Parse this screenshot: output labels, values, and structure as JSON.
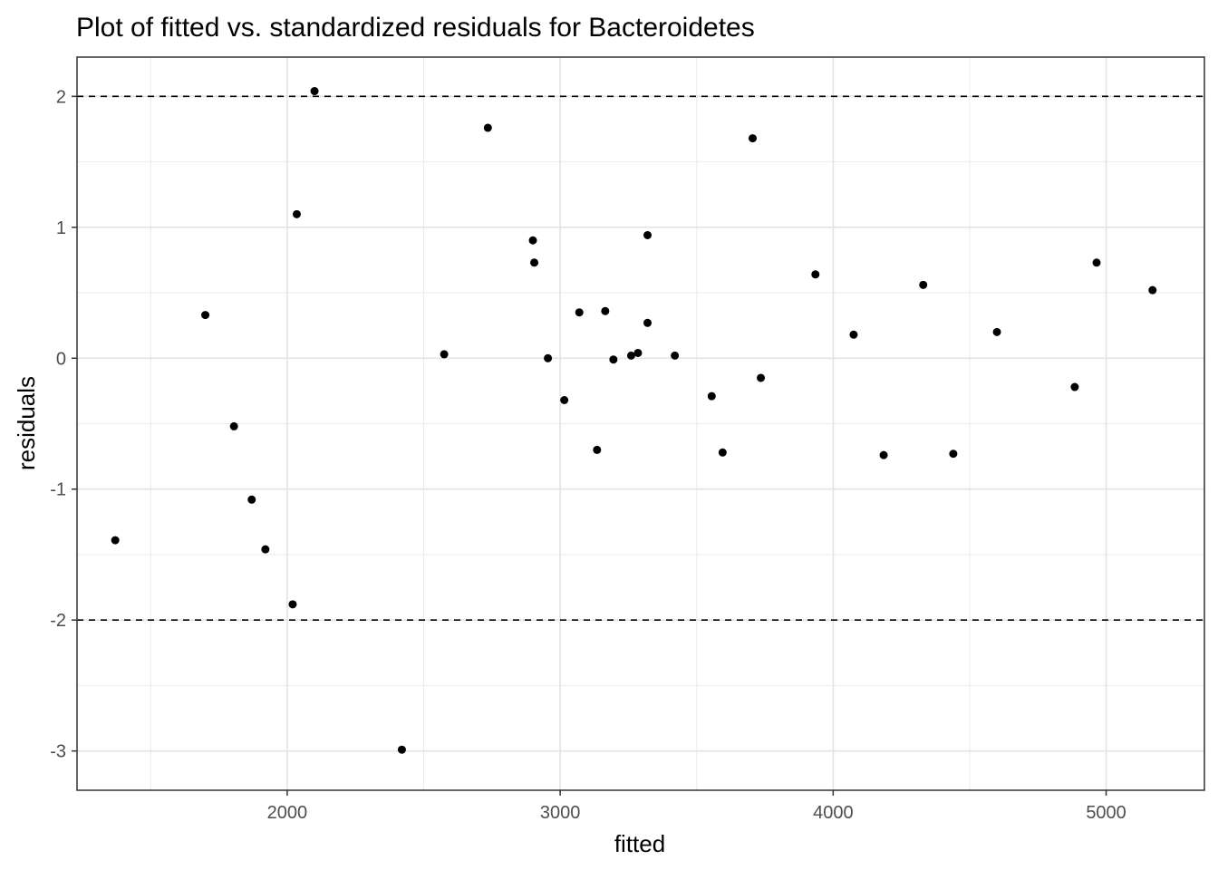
{
  "chart_data": {
    "type": "scatter",
    "title": "Plot of fitted vs. standardized residuals for Bacteroidetes",
    "xlabel": "fitted",
    "ylabel": "residuals",
    "xlim": [
      1230,
      5360
    ],
    "ylim": [
      -3.3,
      2.3
    ],
    "x_ticks": [
      2000,
      3000,
      4000,
      5000
    ],
    "x_tick_labels": [
      "2000",
      "3000",
      "4000",
      "5000"
    ],
    "x_minor_ticks": [
      1500,
      2500,
      3500,
      4500
    ],
    "y_ticks": [
      -3,
      -2,
      -1,
      0,
      1,
      2
    ],
    "y_tick_labels": [
      "-3",
      "-2",
      "-1",
      "0",
      "1",
      "2"
    ],
    "y_minor_ticks": [
      -2.5,
      -1.5,
      -0.5,
      0.5,
      1.5
    ],
    "reference_lines_y": [
      2,
      -2
    ],
    "grid": true,
    "point_color": "#000000",
    "points": [
      {
        "x": 1370,
        "y": -1.39
      },
      {
        "x": 1700,
        "y": 0.33
      },
      {
        "x": 1805,
        "y": -0.52
      },
      {
        "x": 1870,
        "y": -1.08
      },
      {
        "x": 1920,
        "y": -1.46
      },
      {
        "x": 2020,
        "y": -1.88
      },
      {
        "x": 2035,
        "y": 1.1
      },
      {
        "x": 2100,
        "y": 2.04
      },
      {
        "x": 2420,
        "y": -2.99
      },
      {
        "x": 2575,
        "y": 0.03
      },
      {
        "x": 2735,
        "y": 1.76
      },
      {
        "x": 2900,
        "y": 0.9
      },
      {
        "x": 2905,
        "y": 0.73
      },
      {
        "x": 2955,
        "y": 0.0
      },
      {
        "x": 3015,
        "y": -0.32
      },
      {
        "x": 3070,
        "y": 0.35
      },
      {
        "x": 3135,
        "y": -0.7
      },
      {
        "x": 3165,
        "y": 0.36
      },
      {
        "x": 3195,
        "y": -0.01
      },
      {
        "x": 3260,
        "y": 0.02
      },
      {
        "x": 3285,
        "y": 0.04
      },
      {
        "x": 3320,
        "y": 0.94
      },
      {
        "x": 3320,
        "y": 0.27
      },
      {
        "x": 3420,
        "y": 0.02
      },
      {
        "x": 3555,
        "y": -0.29
      },
      {
        "x": 3595,
        "y": -0.72
      },
      {
        "x": 3705,
        "y": 1.68
      },
      {
        "x": 3735,
        "y": -0.15
      },
      {
        "x": 3935,
        "y": 0.64
      },
      {
        "x": 4075,
        "y": 0.18
      },
      {
        "x": 4185,
        "y": -0.74
      },
      {
        "x": 4330,
        "y": 0.56
      },
      {
        "x": 4440,
        "y": -0.73
      },
      {
        "x": 4600,
        "y": 0.2
      },
      {
        "x": 4885,
        "y": -0.22
      },
      {
        "x": 4965,
        "y": 0.73
      },
      {
        "x": 5170,
        "y": 0.52
      }
    ]
  }
}
